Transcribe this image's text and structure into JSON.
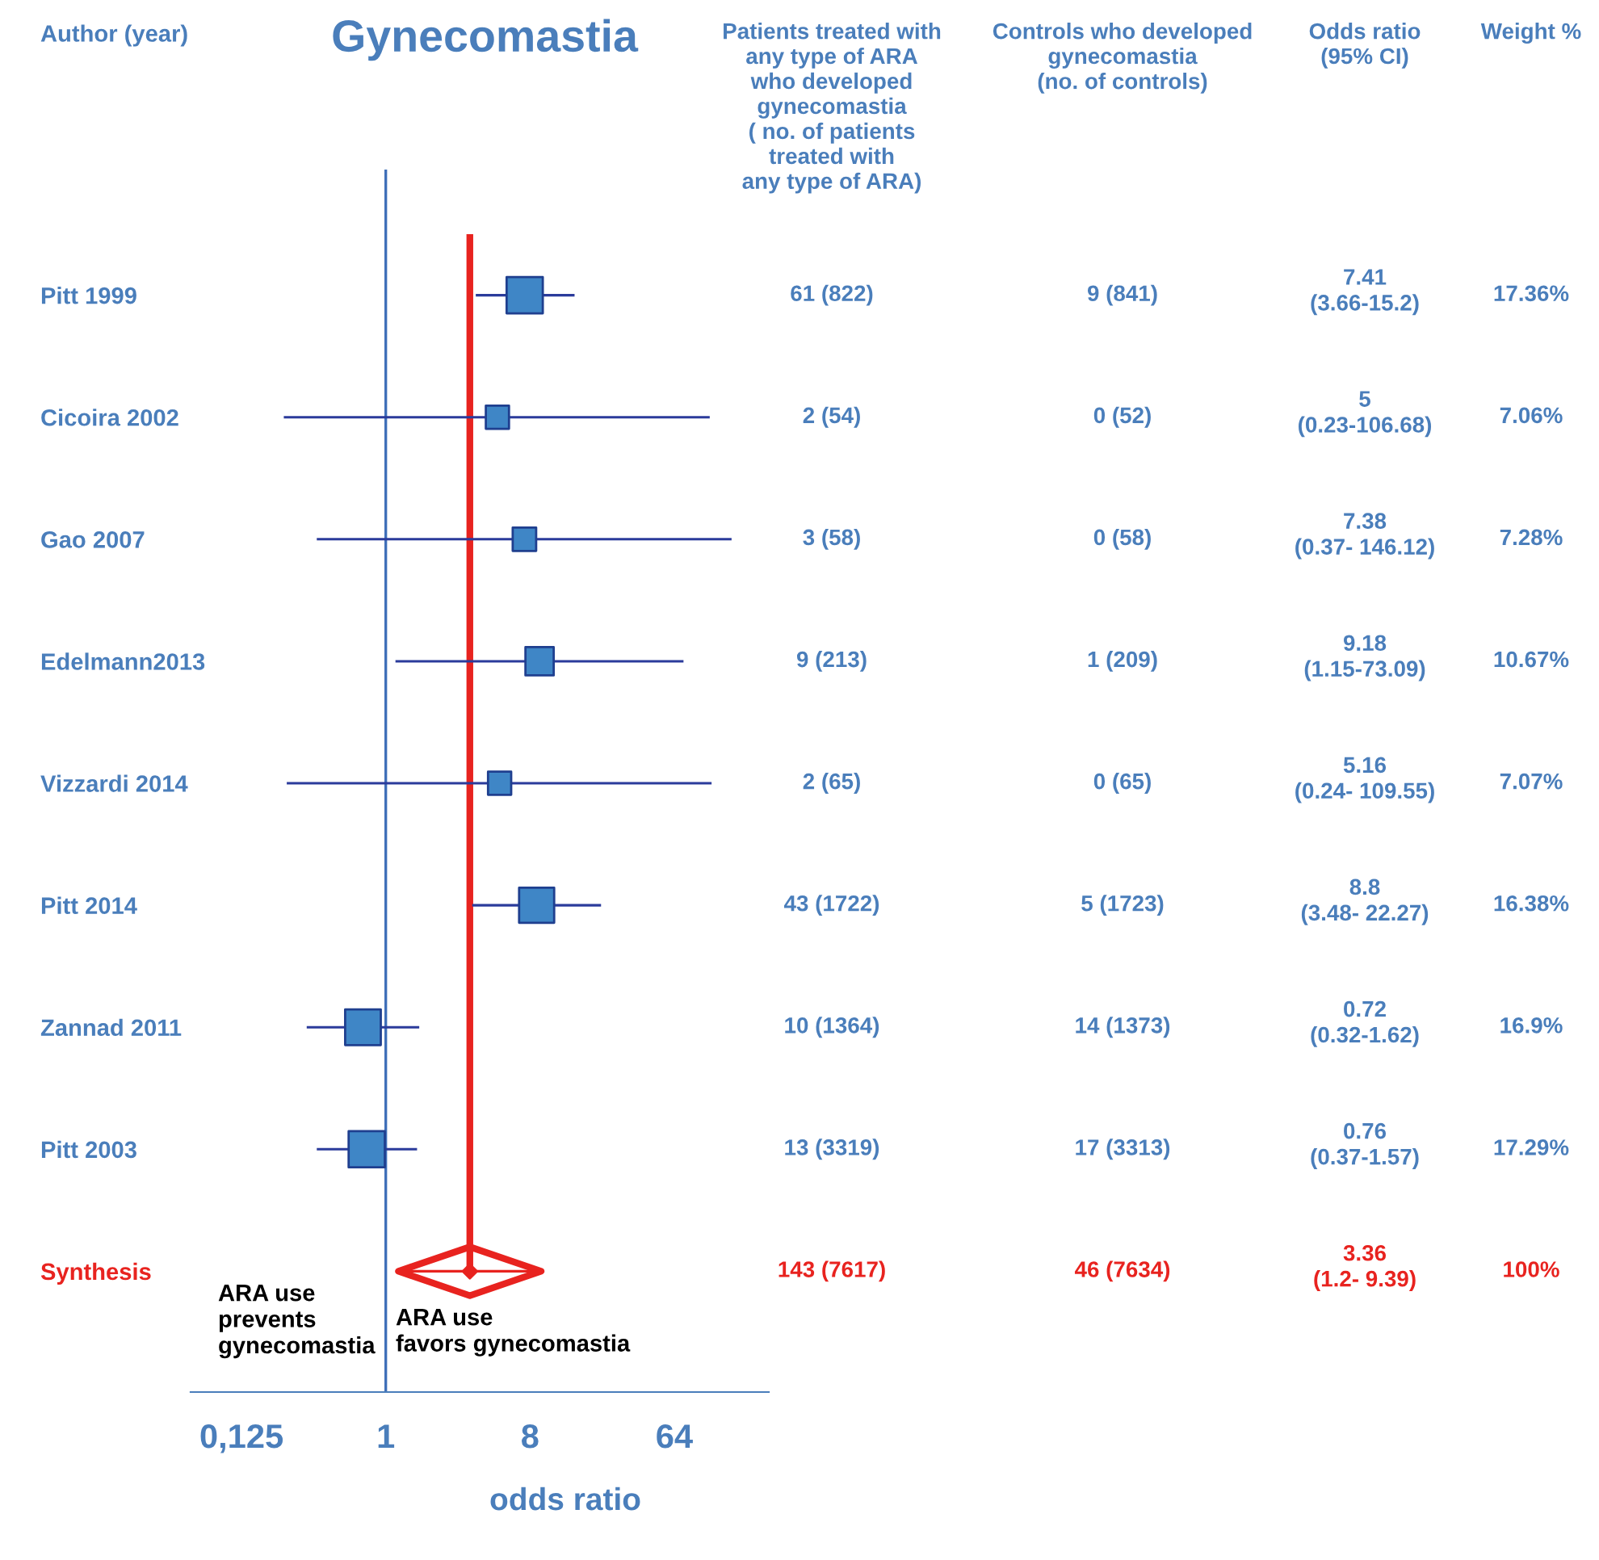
{
  "chart_data": {
    "type": "scatter",
    "title": "Gynecomastia",
    "xlabel": "odds ratio",
    "orientation": "horizontal",
    "log": "x",
    "marker": "square",
    "categories": [
      "Pitt 1999",
      "Cicoira 2002",
      "Gao 2007",
      "Edelmann2013",
      "Vizzardi 2014",
      "Pitt 2014",
      "Zannad 2011",
      "Pitt 2003",
      "Synthesis"
    ],
    "xlim": [
      0.06,
      250
    ],
    "xticks": [
      {
        "value": 0.125,
        "label": "0,125"
      },
      1,
      8,
      64
    ],
    "series": [
      {
        "type": "bubble",
        "color": "#3f86c6",
        "values": [
          7.41,
          5,
          7.38,
          9.18,
          5.16,
          8.8,
          0.72,
          0.76,
          null
        ],
        "errors": [
          [
            3.66,
            15.2
          ],
          [
            0.23,
            106.68
          ],
          [
            0.37,
            146.12
          ],
          [
            1.15,
            73.09
          ],
          [
            0.24,
            109.55
          ],
          [
            3.48,
            22.27
          ],
          [
            0.32,
            1.62
          ],
          [
            0.37,
            1.57
          ],
          null
        ],
        "sizes": [
          1,
          0.41,
          0.42,
          0.61,
          0.41,
          0.94,
          0.97,
          1,
          null
        ]
      },
      {
        "marker": "diamond",
        "color": "#e8231f",
        "values": [
          null,
          null,
          null,
          null,
          null,
          null,
          null,
          null,
          3.36
        ],
        "errors": [
          null,
          null,
          null,
          null,
          null,
          null,
          null,
          null,
          [
            1.2,
            9.39
          ]
        ]
      }
    ],
    "ref_lines": [
      {
        "axis": "x",
        "value": 1,
        "color": "#3f6fb8"
      },
      {
        "axis": "x",
        "value": 3.36,
        "color": "#e8231f"
      }
    ],
    "annotations": [
      "Author (year)",
      "ARA use\nprevents\ngynecomastia",
      "ARA use\nfavors gynecomastia",
      "Patients treated with\nany type of ARA\nwho developed\ngynecomastia\n( no. of patients\ntreated with\nany type of ARA)",
      "Controls who developed\ngynecomastia\n(no. of controls)",
      "Odds ratio\n(95% CI)",
      "Weight %",
      "61 (822)",
      "9 (841)",
      "7.41\n(3.66-15.2)",
      "17.36%",
      "2 (54)",
      "0 (52)",
      "5\n(0.23-106.68)",
      "7.06%",
      "3 (58)",
      "0 (58)",
      "7.38\n(0.37- 146.12)",
      "7.28%",
      "9 (213)",
      "1 (209)",
      "9.18\n(1.15-73.09)",
      "10.67%",
      "2 (65)",
      "0 (65)",
      "5.16\n(0.24- 109.55)",
      "7.07%",
      "43 (1722)",
      "5 (1723)",
      "8.8\n(3.48- 22.27)",
      "16.38%",
      "10 (1364)",
      "14 (1373)",
      "0.72\n(0.32-1.62)",
      "16.9%",
      "13 (3319)",
      "17 (3313)",
      "0.76\n(0.37-1.57)",
      "17.29%",
      "143 (7617)",
      "46 (7634)",
      "3.36\n(1.2- 9.39)",
      "100%"
    ]
  }
}
